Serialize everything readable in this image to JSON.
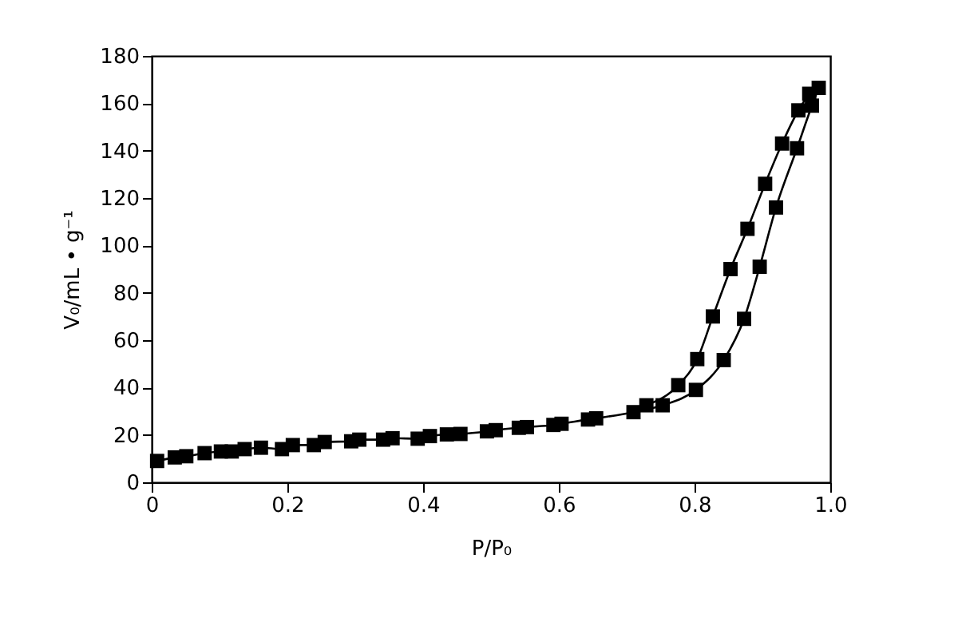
{
  "chart_data": {
    "type": "line",
    "xlabel": "P/P₀",
    "ylabel": "V₀/mL • g⁻¹",
    "xlim": [
      0,
      1
    ],
    "xticks": [
      0,
      0.2,
      0.4,
      0.6,
      0.8,
      {
        "value": 1,
        "label": "1.0"
      }
    ],
    "ylim": [
      0,
      180
    ],
    "yticks": [
      0,
      20,
      40,
      60,
      80,
      100,
      120,
      140,
      160,
      180
    ],
    "grid": false,
    "marker": "square",
    "line_style": "solid",
    "series": [
      {
        "color": "#000000",
        "x": [
          0.008,
          0.034,
          0.051,
          0.078,
          0.102,
          0.118,
          0.137,
          0.161,
          0.192,
          0.208,
          0.239,
          0.255,
          0.294,
          0.306,
          0.341,
          0.355,
          0.392,
          0.41,
          0.435,
          0.455,
          0.494,
          0.507,
          0.541,
          0.553,
          0.592,
          0.604,
          0.643,
          0.655,
          0.71,
          0.753,
          0.802,
          0.843,
          0.873,
          0.896,
          0.92,
          0.951,
          0.973,
          0.983
        ],
        "values": [
          9,
          10.5,
          11,
          12.3,
          13,
          13,
          14,
          14.6,
          14,
          15.7,
          15.7,
          17,
          17.3,
          18,
          18,
          18.6,
          18.4,
          19.5,
          20.2,
          20.4,
          21.5,
          22,
          23,
          23.3,
          24.2,
          24.7,
          26.5,
          27,
          29.6,
          32.5,
          39,
          51.6,
          69,
          91,
          116,
          141,
          159,
          166.5
        ]
      },
      {
        "color": "#000000",
        "x": [
          0.729,
          0.776,
          0.804,
          0.827,
          0.853,
          0.878,
          0.904,
          0.929,
          0.953,
          0.969
        ],
        "values": [
          32.5,
          41,
          52,
          70,
          90,
          107,
          126,
          143,
          157,
          164
        ]
      }
    ]
  }
}
